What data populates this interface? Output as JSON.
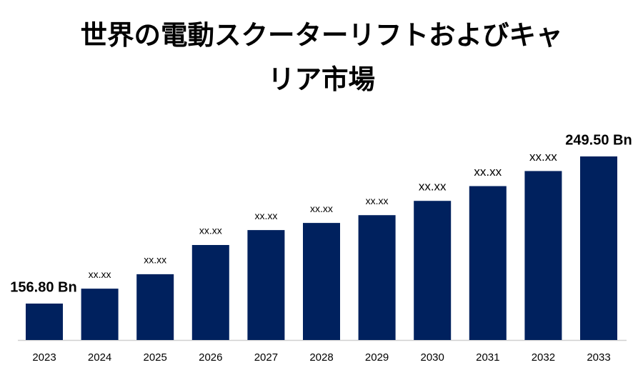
{
  "chart_data": {
    "type": "bar",
    "title": "世界の電動スクーターリフトおよびキャリア市場",
    "categories": [
      "2023",
      "2024",
      "2025",
      "2026",
      "2027",
      "2028",
      "2029",
      "2030",
      "2031",
      "2032",
      "2033"
    ],
    "values": [
      156.8,
      166.2,
      175.3,
      193.7,
      203.1,
      207.6,
      212.5,
      221.5,
      230.8,
      240.3,
      249.5
    ],
    "value_labels": [
      "156.80 Bn",
      "xx.xx",
      "xx.xx",
      "xx.xx",
      "xx.xx",
      "xx.xx",
      "xx.xx",
      "xx.xx",
      "xx.xx",
      "xx.xx",
      "249.50 Bn"
    ],
    "color": "#00215e"
  }
}
